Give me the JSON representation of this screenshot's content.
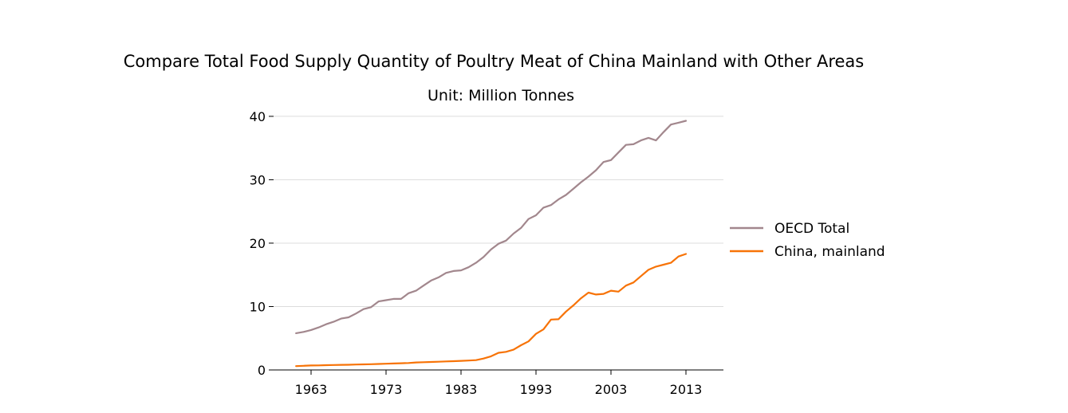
{
  "chart_data": {
    "type": "line",
    "title": "Compare Total Food Supply Quantity of Poultry Meat of China Mainland with Other Areas",
    "subtitle": "Unit: Million Tonnes",
    "xlabel": "",
    "ylabel": "",
    "xlim": [
      1958,
      2018
    ],
    "ylim": [
      0,
      42
    ],
    "x_ticks": [
      1963,
      1973,
      1983,
      1993,
      2003,
      2013
    ],
    "y_ticks": [
      0,
      10,
      20,
      30,
      40
    ],
    "grid": "horizontal",
    "legend_position": "right",
    "x": [
      1961,
      1962,
      1963,
      1964,
      1965,
      1966,
      1967,
      1968,
      1969,
      1970,
      1971,
      1972,
      1973,
      1974,
      1975,
      1976,
      1977,
      1978,
      1979,
      1980,
      1981,
      1982,
      1983,
      1984,
      1985,
      1986,
      1987,
      1988,
      1989,
      1990,
      1991,
      1992,
      1993,
      1994,
      1995,
      1996,
      1997,
      1998,
      1999,
      2000,
      2001,
      2002,
      2003,
      2004,
      2005,
      2006,
      2007,
      2008,
      2009,
      2010,
      2011,
      2012,
      2013
    ],
    "series": [
      {
        "name": "OECD Total",
        "color": "#a2878d",
        "values": [
          5.8,
          6.0,
          6.3,
          6.7,
          7.2,
          7.6,
          8.1,
          8.3,
          8.9,
          9.6,
          9.9,
          10.8,
          11.0,
          11.2,
          11.2,
          12.1,
          12.5,
          13.3,
          14.1,
          14.6,
          15.3,
          15.6,
          15.7,
          16.2,
          16.9,
          17.8,
          19.0,
          19.9,
          20.4,
          21.5,
          22.4,
          23.8,
          24.4,
          25.6,
          26.0,
          26.9,
          27.6,
          28.6,
          29.6,
          30.5,
          31.5,
          32.8,
          33.1,
          34.3,
          35.5,
          35.6,
          36.2,
          36.6,
          36.2,
          37.5,
          38.7,
          39.0,
          39.3
        ]
      },
      {
        "name": "China, mainland",
        "color": "#f77307",
        "values": [
          0.6,
          0.65,
          0.7,
          0.72,
          0.75,
          0.78,
          0.8,
          0.82,
          0.85,
          0.88,
          0.9,
          0.94,
          0.98,
          1.02,
          1.05,
          1.1,
          1.18,
          1.22,
          1.26,
          1.3,
          1.34,
          1.38,
          1.43,
          1.48,
          1.55,
          1.8,
          2.15,
          2.7,
          2.85,
          3.2,
          3.9,
          4.5,
          5.7,
          6.4,
          7.95,
          8.0,
          9.2,
          10.2,
          11.3,
          12.2,
          11.9,
          12.0,
          12.5,
          12.35,
          13.3,
          13.8,
          14.8,
          15.8,
          16.3,
          16.6,
          16.9,
          17.9,
          18.3
        ]
      }
    ]
  }
}
